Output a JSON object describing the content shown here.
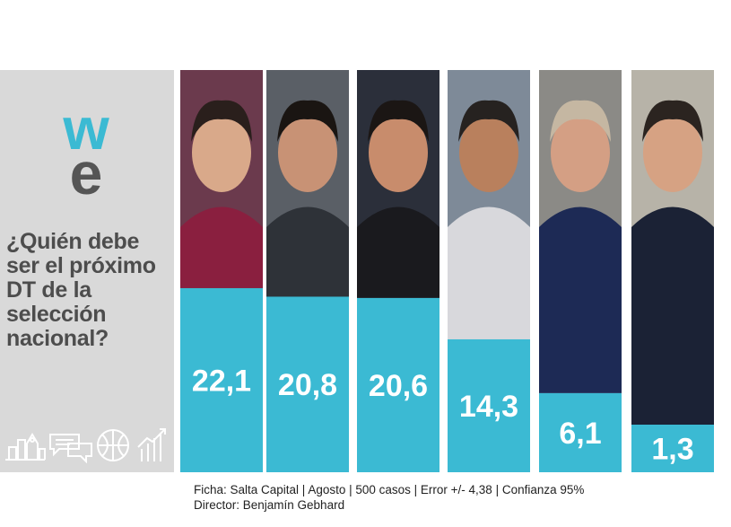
{
  "brand": {
    "logo_text_top": "w",
    "logo_text_bottom": "e",
    "accent": "#3bbad3",
    "logo_dark": "#555555"
  },
  "question": "¿Quién debe ser el próximo DT de la selección nacional?",
  "icons": [
    "city-icon",
    "chat-icon",
    "ball-icon",
    "growth-chart-icon"
  ],
  "colors": {
    "bar": "#3bbad3",
    "panel": "#d9d9d9",
    "label": "#ffffff",
    "question": "#4d4d4d"
  },
  "chart_data": {
    "type": "bar",
    "categories": [
      "",
      "",
      "",
      "",
      "",
      ""
    ],
    "values": [
      22.1,
      20.8,
      20.6,
      14.3,
      6.1,
      1.3
    ],
    "value_labels": [
      "22,1",
      "20,8",
      "20,6",
      "14,3",
      "6,1",
      "1,3"
    ],
    "title": "",
    "xlabel": "",
    "ylabel": "",
    "photo_tones": [
      {
        "bg": "#6b3a4d",
        "skin": "#d9a98a",
        "hair": "#2a1f1c",
        "shirt": "#8a1f3f"
      },
      {
        "bg": "#5a5f66",
        "skin": "#c89275",
        "hair": "#1a1512",
        "shirt": "#2e3238"
      },
      {
        "bg": "#2b2f3a",
        "skin": "#c88c6c",
        "hair": "#1b1614",
        "shirt": "#1a1a1e"
      },
      {
        "bg": "#7e8a98",
        "skin": "#b9805d",
        "hair": "#262220",
        "shirt": "#d8d8dc"
      },
      {
        "bg": "#8b8a86",
        "skin": "#d49f84",
        "hair": "#c5b7a2",
        "shirt": "#1d2a55"
      },
      {
        "bg": "#b7b3a8",
        "skin": "#d6a283",
        "hair": "#2b2420",
        "shirt": "#1b2235"
      }
    ]
  },
  "footer": {
    "line1": "Ficha: Salta Capital | Agosto | 500 casos | Error +/- 4,38 | Confianza 95%",
    "line2": "Director: Benjamín Gebhard"
  }
}
